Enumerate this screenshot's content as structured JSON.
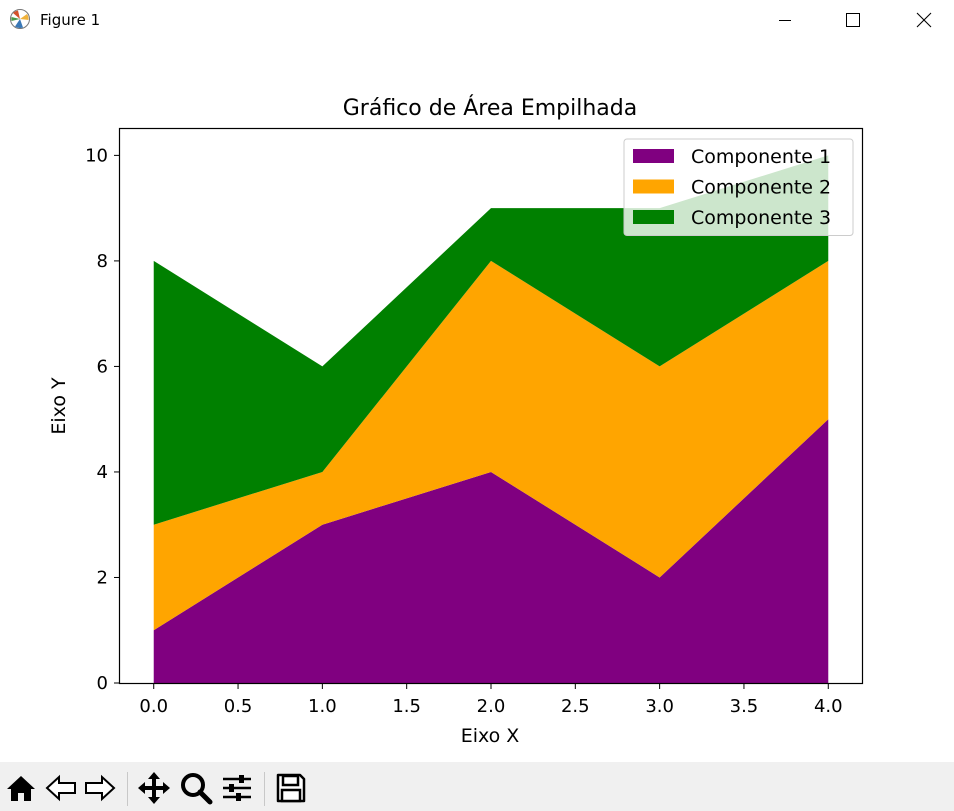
{
  "window": {
    "title": "Figure 1",
    "icon": "matplotlib-icon",
    "controls": [
      "minimize-icon",
      "maximize-icon",
      "close-icon"
    ]
  },
  "toolbar": {
    "buttons": [
      "home-icon",
      "back-arrow-icon",
      "forward-arrow-icon",
      "pan-icon",
      "zoom-icon",
      "configure-subplots-icon",
      "save-icon"
    ]
  },
  "chart_data": {
    "type": "area",
    "stacked": true,
    "title": "Gráfico de Área Empilhada",
    "xlabel": "Eixo X",
    "ylabel": "Eixo Y",
    "x": [
      0,
      1,
      2,
      3,
      4
    ],
    "xlim": [
      -0.2,
      4.2
    ],
    "ylim": [
      0,
      10.5
    ],
    "xticks": [
      "0.0",
      "0.5",
      "1.0",
      "1.5",
      "2.0",
      "2.5",
      "3.0",
      "3.5",
      "4.0"
    ],
    "yticks": [
      "0",
      "2",
      "4",
      "6",
      "8",
      "10"
    ],
    "series": [
      {
        "name": "Componente 1",
        "values": [
          1,
          3,
          4,
          2,
          5
        ],
        "color": "#800080"
      },
      {
        "name": "Componente 2",
        "values": [
          2,
          1,
          4,
          4,
          3
        ],
        "color": "#ffa500"
      },
      {
        "name": "Componente 3",
        "values": [
          5,
          2,
          1,
          3,
          2
        ],
        "color": "#008000"
      }
    ],
    "grid": false,
    "legend_position": "upper right"
  }
}
